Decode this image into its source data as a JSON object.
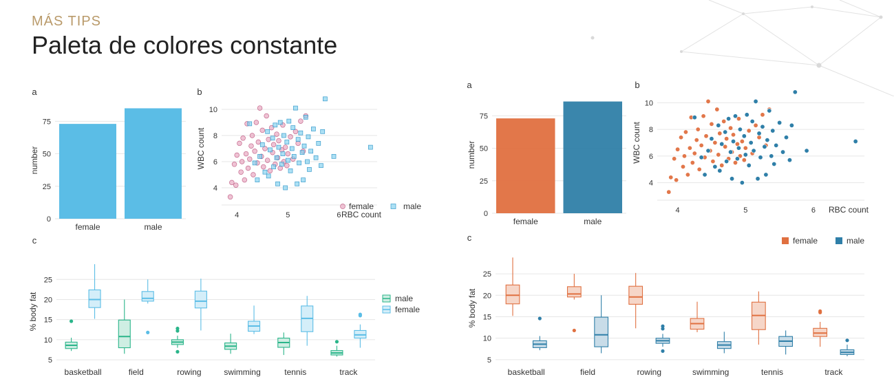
{
  "header": {
    "subtitle": "MÁS TIPS",
    "title": "Paleta de colores constante"
  },
  "colors": {
    "left_female": "#5bbde6",
    "left_male": "#2ab58a",
    "left_scatter_female": "#e59bb8",
    "left_scatter_male": "#7fd0ee",
    "right_female": "#e07040",
    "right_male": "#2f7fa8"
  },
  "chart_data": [
    {
      "panel_label": "a",
      "type": "bar",
      "side": "left",
      "categories": [
        "female",
        "male"
      ],
      "values": [
        73,
        85
      ],
      "ylabel": "number",
      "yticks": [
        0,
        25,
        50,
        75
      ],
      "ylim": [
        0,
        90
      ]
    },
    {
      "panel_label": "b",
      "type": "scatter",
      "side": "left",
      "xlabel": "RBC count",
      "ylabel": "WBC count",
      "xticks": [
        4,
        5,
        6
      ],
      "yticks": [
        4,
        6,
        8,
        10
      ],
      "xlim": [
        3.7,
        6.75
      ],
      "ylim": [
        3.0,
        11.0
      ],
      "legend": [
        "female",
        "male"
      ],
      "series": [
        {
          "name": "female",
          "points": [
            [
              3.87,
              3.3
            ],
            [
              3.9,
              4.4
            ],
            [
              3.95,
              5.8
            ],
            [
              3.98,
              4.2
            ],
            [
              4.0,
              6.5
            ],
            [
              4.05,
              7.4
            ],
            [
              4.08,
              5.2
            ],
            [
              4.1,
              6.0
            ],
            [
              4.12,
              7.8
            ],
            [
              4.15,
              4.6
            ],
            [
              4.18,
              6.6
            ],
            [
              4.2,
              8.9
            ],
            [
              4.22,
              5.5
            ],
            [
              4.25,
              6.2
            ],
            [
              4.28,
              7.2
            ],
            [
              4.3,
              8.0
            ],
            [
              4.32,
              5.0
            ],
            [
              4.35,
              6.8
            ],
            [
              4.38,
              9.0
            ],
            [
              4.4,
              5.9
            ],
            [
              4.42,
              7.5
            ],
            [
              4.45,
              10.1
            ],
            [
              4.48,
              6.4
            ],
            [
              4.5,
              8.4
            ],
            [
              4.52,
              5.6
            ],
            [
              4.55,
              7.0
            ],
            [
              4.58,
              9.5
            ],
            [
              4.6,
              6.1
            ],
            [
              4.62,
              7.7
            ],
            [
              4.65,
              5.3
            ],
            [
              4.68,
              8.6
            ],
            [
              4.7,
              6.7
            ],
            [
              4.72,
              7.3
            ],
            [
              4.75,
              5.8
            ],
            [
              4.78,
              8.1
            ],
            [
              4.8,
              6.3
            ],
            [
              4.82,
              7.6
            ],
            [
              4.85,
              5.5
            ],
            [
              4.88,
              6.9
            ],
            [
              4.9,
              8.8
            ],
            [
              4.92,
              6.0
            ],
            [
              4.95,
              7.1
            ],
            [
              4.98,
              5.7
            ],
            [
              5.0,
              6.6
            ],
            [
              5.05,
              7.9
            ],
            [
              5.1,
              6.2
            ],
            [
              5.15,
              8.3
            ],
            [
              5.2,
              7.4
            ],
            [
              5.25,
              9.1
            ],
            [
              5.3,
              6.8
            ],
            [
              5.35,
              9.5
            ]
          ]
        },
        {
          "name": "male",
          "points": [
            [
              4.25,
              8.9
            ],
            [
              4.35,
              5.9
            ],
            [
              4.4,
              4.6
            ],
            [
              4.45,
              6.4
            ],
            [
              4.5,
              7.3
            ],
            [
              4.55,
              5.2
            ],
            [
              4.6,
              8.3
            ],
            [
              4.62,
              4.9
            ],
            [
              4.65,
              6.9
            ],
            [
              4.7,
              7.8
            ],
            [
              4.72,
              5.6
            ],
            [
              4.75,
              8.8
            ],
            [
              4.78,
              6.3
            ],
            [
              4.8,
              4.3
            ],
            [
              4.82,
              7.1
            ],
            [
              4.85,
              9.0
            ],
            [
              4.88,
              5.8
            ],
            [
              4.9,
              6.6
            ],
            [
              4.92,
              8.0
            ],
            [
              4.95,
              4.0
            ],
            [
              4.98,
              7.5
            ],
            [
              5.0,
              6.1
            ],
            [
              5.02,
              9.1
            ],
            [
              5.05,
              5.3
            ],
            [
              5.08,
              7.0
            ],
            [
              5.1,
              8.6
            ],
            [
              5.12,
              6.4
            ],
            [
              5.15,
              10.1
            ],
            [
              5.18,
              4.3
            ],
            [
              5.2,
              7.7
            ],
            [
              5.22,
              5.9
            ],
            [
              5.25,
              8.2
            ],
            [
              5.28,
              6.7
            ],
            [
              5.3,
              4.6
            ],
            [
              5.32,
              7.2
            ],
            [
              5.35,
              9.4
            ],
            [
              5.38,
              6.0
            ],
            [
              5.4,
              7.9
            ],
            [
              5.42,
              5.4
            ],
            [
              5.45,
              6.8
            ],
            [
              5.5,
              8.5
            ],
            [
              5.55,
              6.3
            ],
            [
              5.6,
              7.4
            ],
            [
              5.65,
              5.7
            ],
            [
              5.68,
              8.3
            ],
            [
              5.73,
              10.8
            ],
            [
              5.9,
              6.4
            ],
            [
              6.62,
              7.1
            ]
          ]
        }
      ]
    },
    {
      "panel_label": "c",
      "type": "box",
      "side": "left",
      "ylabel": "% body fat",
      "yticks": [
        5,
        10,
        15,
        20,
        25
      ],
      "ylim": [
        4.5,
        29.5
      ],
      "categories": [
        "basketball",
        "field",
        "rowing",
        "swimming",
        "tennis",
        "track"
      ],
      "legend": [
        "male",
        "female"
      ],
      "series": [
        {
          "name": "male",
          "boxes": [
            {
              "min": 7.2,
              "q1": 7.8,
              "median": 8.6,
              "q3": 9.4,
              "max": 10.5,
              "outliers": [
                14.6
              ]
            },
            {
              "min": 6.5,
              "q1": 8.0,
              "median": 10.8,
              "q3": 14.9,
              "max": 20.0,
              "outliers": []
            },
            {
              "min": 8.0,
              "q1": 8.8,
              "median": 9.4,
              "q3": 10.0,
              "max": 11.0,
              "outliers": [
                12.8,
                12.2,
                7.0
              ]
            },
            {
              "min": 6.5,
              "q1": 7.6,
              "median": 8.4,
              "q3": 9.2,
              "max": 11.5,
              "outliers": []
            },
            {
              "min": 6.2,
              "q1": 8.1,
              "median": 9.3,
              "q3": 10.4,
              "max": 11.8,
              "outliers": []
            },
            {
              "min": 5.8,
              "q1": 6.2,
              "median": 6.7,
              "q3": 7.3,
              "max": 8.5,
              "outliers": [
                9.5
              ]
            }
          ]
        },
        {
          "name": "female",
          "boxes": [
            {
              "min": 15.2,
              "q1": 18.0,
              "median": 20.0,
              "q3": 22.4,
              "max": 28.8,
              "outliers": []
            },
            {
              "min": 19.0,
              "q1": 19.6,
              "median": 20.3,
              "q3": 22.0,
              "max": 25.0,
              "outliers": [
                11.8
              ]
            },
            {
              "min": 12.3,
              "q1": 17.9,
              "median": 19.6,
              "q3": 22.1,
              "max": 25.2,
              "outliers": []
            },
            {
              "min": 11.4,
              "q1": 12.1,
              "median": 13.4,
              "q3": 14.6,
              "max": 18.5,
              "outliers": []
            },
            {
              "min": 8.5,
              "q1": 12.0,
              "median": 15.3,
              "q3": 18.4,
              "max": 20.9,
              "outliers": []
            },
            {
              "min": 8.0,
              "q1": 10.4,
              "median": 11.2,
              "q3": 12.3,
              "max": 13.8,
              "outliers": [
                16.0,
                16.3
              ]
            }
          ]
        }
      ]
    },
    {
      "panel_label": "a",
      "type": "bar",
      "side": "right",
      "categories": [
        "female",
        "male"
      ],
      "values": [
        73,
        86
      ],
      "ylabel": "number",
      "yticks": [
        0,
        25,
        50,
        75
      ],
      "ylim": [
        0,
        90
      ]
    },
    {
      "panel_label": "b",
      "type": "scatter",
      "side": "right",
      "xlabel": "RBC count",
      "ylabel": "WBC count",
      "xticks": [
        4,
        5,
        6
      ],
      "yticks": [
        4,
        6,
        8,
        10
      ],
      "xlim": [
        3.7,
        6.75
      ],
      "ylim": [
        3.0,
        11.0
      ],
      "legend": [
        "female",
        "male"
      ]
    },
    {
      "panel_label": "c",
      "type": "box",
      "side": "right",
      "ylabel": "% body fat",
      "yticks": [
        5,
        10,
        15,
        20,
        25
      ],
      "ylim": [
        4.5,
        29.5
      ],
      "categories": [
        "basketball",
        "field",
        "rowing",
        "swimming",
        "tennis",
        "track"
      ],
      "legend": [
        "female",
        "male"
      ]
    }
  ]
}
